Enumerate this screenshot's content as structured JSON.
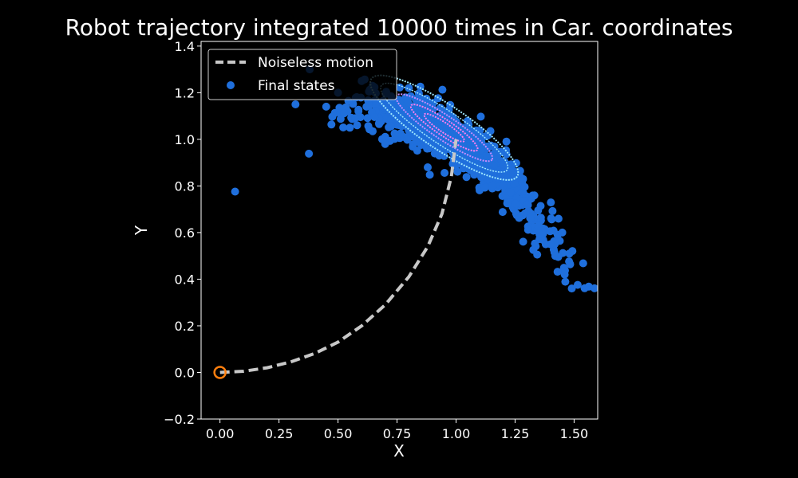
{
  "chart_data": {
    "type": "scatter",
    "title": "Robot trajectory integrated 10000 times in Car. coordinates",
    "xlabel": "X",
    "ylabel": "Y",
    "xlim": [
      -0.08,
      1.6
    ],
    "ylim": [
      -0.2,
      1.42
    ],
    "x_ticks": [
      "0.00",
      "0.25",
      "0.50",
      "0.75",
      "1.00",
      "1.25",
      "1.50"
    ],
    "y_ticks": [
      "−0.2",
      "0.0",
      "0.2",
      "0.4",
      "0.6",
      "0.8",
      "1.0",
      "1.2",
      "1.4"
    ],
    "x_tick_values": [
      0,
      0.25,
      0.5,
      0.75,
      1.0,
      1.25,
      1.5
    ],
    "y_tick_values": [
      -0.2,
      0,
      0.2,
      0.4,
      0.6,
      0.8,
      1.0,
      1.2,
      1.4
    ],
    "grid": false,
    "legend_position": "top-left",
    "colors": {
      "background": "#000000",
      "axes": "#ffffff",
      "noiseless": "#c8c8c8",
      "final_states": "#1f6fdc",
      "start_marker": "#ff7f0e",
      "contour_outer": "#9fe8ff",
      "contour_mid": "#c78cff",
      "contour_inner": "#ff7ff0"
    },
    "series": [
      {
        "name": "Noiseless motion",
        "style": "dashed-line",
        "x": [
          0,
          0.1,
          0.2,
          0.3,
          0.4,
          0.5,
          0.6,
          0.7,
          0.8,
          0.88,
          0.94,
          0.98,
          1.0
        ],
        "y": [
          0,
          0.005,
          0.02,
          0.045,
          0.081,
          0.13,
          0.2,
          0.29,
          0.41,
          0.54,
          0.68,
          0.84,
          1.0
        ]
      },
      {
        "name": "Final states",
        "style": "points",
        "center": [
          1.0,
          1.0
        ],
        "x": [
          0.32,
          0.38,
          0.45,
          0.5,
          0.55,
          0.6,
          0.63,
          0.7,
          0.8,
          0.88,
          1.2,
          1.3,
          1.35,
          1.4,
          1.45,
          1.46,
          1.49,
          1.48,
          1.42,
          1.38
        ],
        "y": [
          1.15,
          1.3,
          1.14,
          1.2,
          1.05,
          1.25,
          1.15,
          0.98,
          1.22,
          0.88,
          0.8,
          0.72,
          0.63,
          0.55,
          0.6,
          0.42,
          0.36,
          0.51,
          0.5,
          0.55
        ]
      }
    ],
    "start_point": [
      0,
      0
    ]
  }
}
